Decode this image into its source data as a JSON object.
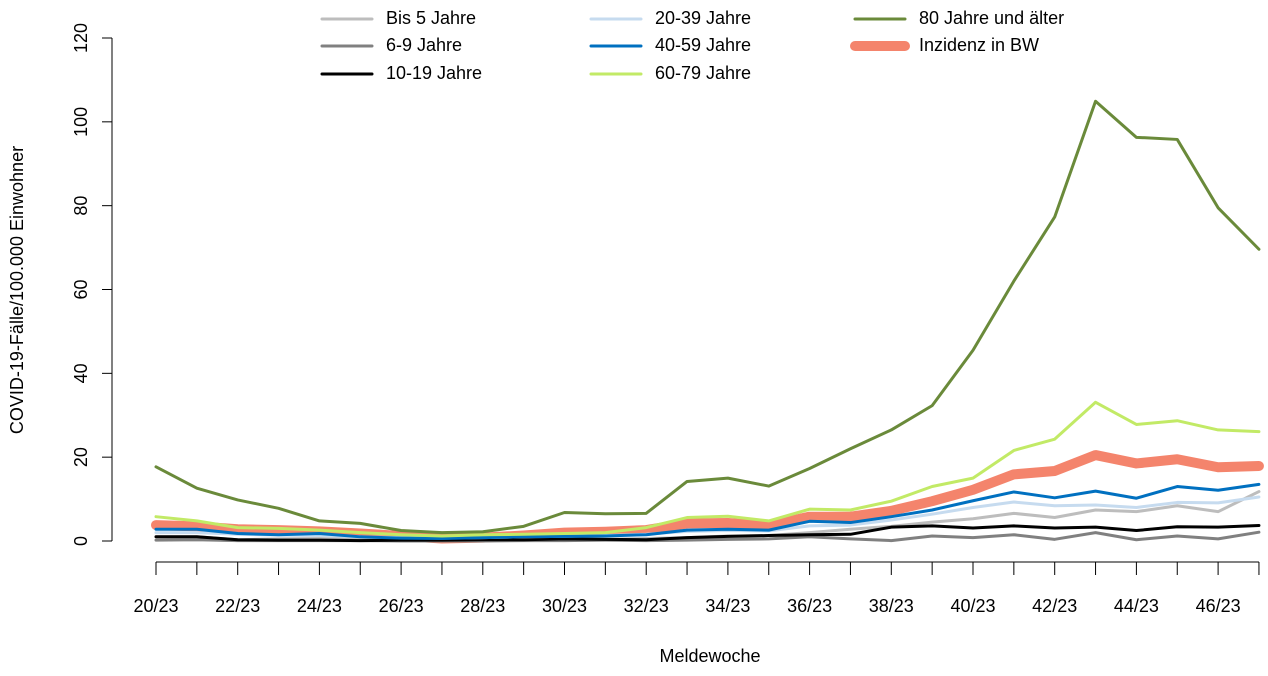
{
  "chart_data": {
    "type": "line",
    "x_label": "Meldewoche",
    "y_label": "COVID-19-Fälle/100.000 Einwohner",
    "categories": [
      "20/23",
      null,
      "22/23",
      null,
      "24/23",
      null,
      "26/23",
      null,
      "28/23",
      null,
      "30/23",
      null,
      "32/23",
      null,
      "34/23",
      null,
      "36/23",
      null,
      "38/23",
      null,
      "40/23",
      null,
      "42/23",
      null,
      "44/23",
      null,
      "46/23",
      null
    ],
    "ylim": [
      0,
      120
    ],
    "yticks": [
      0,
      20,
      40,
      60,
      80,
      100,
      120
    ],
    "series": [
      {
        "name": "Inzidenz in BW",
        "color": "#f4846c",
        "width": 10,
        "values": [
          3.8,
          3.5,
          2.8,
          2.6,
          2.3,
          1.8,
          1.2,
          0.6,
          0.8,
          1.3,
          2.0,
          2.2,
          2.6,
          4.2,
          4.3,
          3.7,
          5.8,
          5.8,
          7.2,
          9.5,
          12.2,
          15.9,
          16.7,
          20.5,
          18.5,
          19.5,
          17.6,
          17.9
        ]
      },
      {
        "name": "Bis 5 Jahre",
        "color": "#bdbdbd",
        "width": 3,
        "values": [
          1.0,
          1.0,
          0.3,
          0.5,
          0.6,
          0.4,
          0.3,
          0.2,
          0.2,
          0.3,
          0.5,
          0.4,
          0.6,
          0.8,
          1.2,
          1.3,
          2.0,
          2.8,
          3.5,
          4.5,
          5.3,
          6.6,
          5.6,
          7.4,
          7.0,
          8.4,
          7.0,
          11.8
        ]
      },
      {
        "name": "6-9 Jahre",
        "color": "#808080",
        "width": 3,
        "values": [
          0.2,
          0.3,
          0.1,
          0.1,
          0.1,
          0.1,
          0.0,
          0.0,
          0.0,
          0.1,
          0.1,
          0.2,
          0.1,
          0.2,
          0.4,
          0.5,
          1.0,
          0.5,
          0.1,
          1.2,
          0.8,
          1.5,
          0.4,
          2.0,
          0.3,
          1.2,
          0.5,
          2.1
        ]
      },
      {
        "name": "10-19 Jahre",
        "color": "#000000",
        "width": 3,
        "values": [
          1.0,
          1.0,
          0.3,
          0.2,
          0.2,
          0.1,
          0.2,
          0.2,
          0.3,
          0.3,
          0.5,
          0.4,
          0.3,
          0.8,
          1.1,
          1.3,
          1.5,
          1.6,
          3.3,
          3.6,
          3.1,
          3.6,
          3.1,
          3.3,
          2.5,
          3.4,
          3.3,
          3.7
        ]
      },
      {
        "name": "20-39 Jahre",
        "color": "#c6dbef",
        "width": 3,
        "values": [
          2.0,
          2.0,
          1.6,
          1.4,
          1.3,
          1.0,
          0.8,
          0.7,
          0.8,
          1.0,
          1.1,
          1.3,
          1.6,
          2.3,
          2.5,
          2.4,
          3.6,
          3.8,
          5.0,
          6.4,
          8.0,
          9.3,
          8.4,
          8.6,
          8.0,
          9.2,
          9.1,
          10.5
        ]
      },
      {
        "name": "40-59 Jahre",
        "color": "#0070c0",
        "width": 3,
        "values": [
          2.8,
          2.8,
          1.8,
          1.5,
          1.8,
          1.0,
          0.7,
          0.6,
          0.8,
          1.0,
          1.1,
          1.2,
          1.5,
          2.6,
          2.8,
          2.6,
          4.7,
          4.4,
          5.8,
          7.4,
          9.6,
          11.7,
          10.3,
          11.9,
          10.2,
          13.0,
          12.1,
          13.5
        ]
      },
      {
        "name": "60-79 Jahre",
        "color": "#c2ea66",
        "width": 3,
        "values": [
          5.8,
          4.8,
          3.2,
          3.0,
          2.6,
          2.0,
          1.5,
          1.2,
          1.5,
          1.6,
          1.8,
          2.0,
          3.2,
          5.6,
          5.9,
          4.8,
          7.6,
          7.4,
          9.5,
          13.0,
          15.0,
          21.6,
          24.3,
          33.1,
          27.8,
          28.7,
          26.5,
          26.1
        ]
      },
      {
        "name": "80 Jahre und älter",
        "color": "#6a8a3a",
        "width": 3,
        "values": [
          17.7,
          12.6,
          9.8,
          7.8,
          4.8,
          4.2,
          2.5,
          2.0,
          2.2,
          3.5,
          6.8,
          6.5,
          6.6,
          14.2,
          15.0,
          13.1,
          17.3,
          22.0,
          26.5,
          32.3,
          45.5,
          62.0,
          77.3,
          104.9,
          96.3,
          95.8,
          79.5,
          69.6
        ]
      }
    ]
  }
}
